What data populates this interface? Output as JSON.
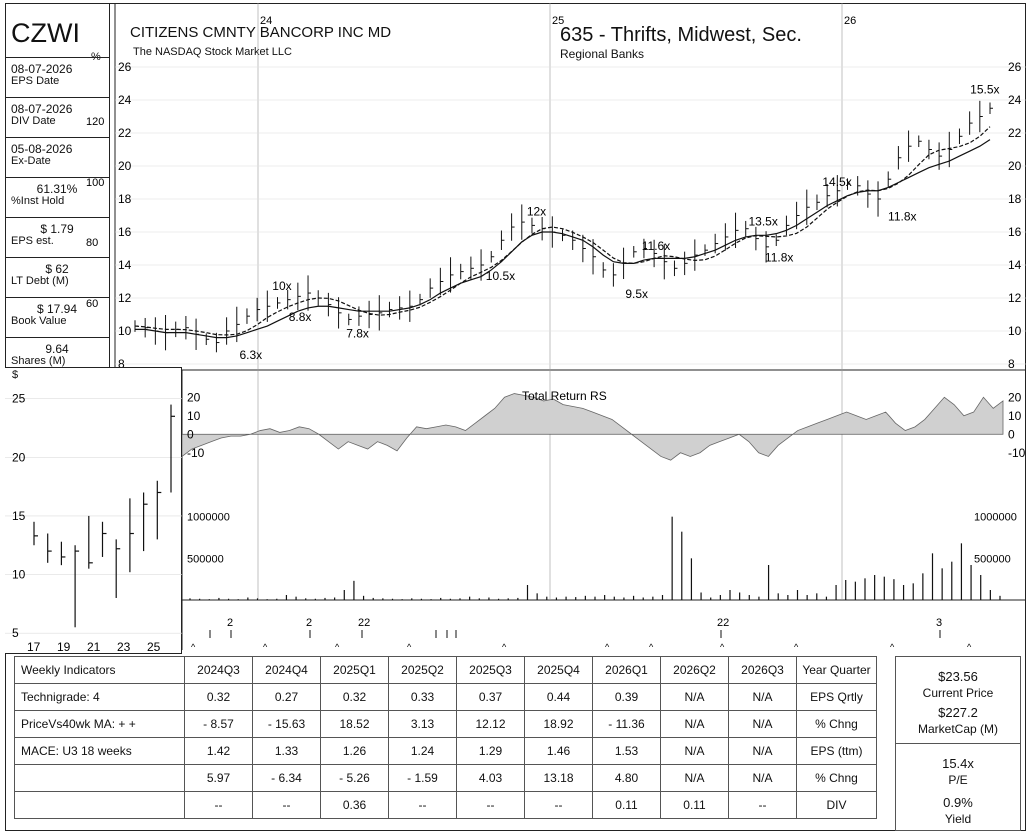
{
  "header": {
    "ticker": "CZWI",
    "company": "CITIZENS CMNTY BANCORP INC MD",
    "exchange": "The NASDAQ Stock Market LLC",
    "group": "635 - Thrifts, Midwest, Sec.",
    "industry": "Regional Banks",
    "percent_symbol": "%",
    "dollar_symbol": "$"
  },
  "sidebar": [
    {
      "value": "08-07-2026",
      "label": "EPS Date"
    },
    {
      "value": "08-07-2026",
      "label": "DIV Date"
    },
    {
      "value": "05-08-2026",
      "label": "Ex-Date"
    },
    {
      "value": "61.31%",
      "label": "%Inst Hold"
    },
    {
      "value": "$ 1.79",
      "label": "EPS est."
    },
    {
      "value": "$ 62",
      "label": "LT Debt (M)"
    },
    {
      "value": "$ 17.94",
      "label": "Book Value"
    },
    {
      "value": "9.64",
      "label": "Shares (M)"
    }
  ],
  "right_panel": {
    "price": "$23.56",
    "price_label": "Current Price",
    "mcap": "$227.2",
    "mcap_label": "MarketCap (M)",
    "pe": "15.4x",
    "pe_label": "P/E",
    "yield": "0.9%",
    "yield_label": "Yield"
  },
  "table": {
    "header": [
      "Weekly Indicators",
      "2024Q3",
      "2024Q4",
      "2025Q1",
      "2025Q2",
      "2025Q3",
      "2025Q4",
      "2026Q1",
      "2026Q2",
      "2026Q3",
      "Year Quarter"
    ],
    "rows": [
      [
        "Technigrade: 4",
        "0.32",
        "0.27",
        "0.32",
        "0.33",
        "0.37",
        "0.44",
        "0.39",
        "N/A",
        "N/A",
        "EPS Qrtly"
      ],
      [
        "PriceVs40wk MA:  + +",
        "- 8.57",
        "- 15.63",
        "18.52",
        "3.13",
        "12.12",
        "18.92",
        "- 11.36",
        "N/A",
        "N/A",
        "% Chng"
      ],
      [
        "MACE: U3   18 weeks",
        "1.42",
        "1.33",
        "1.26",
        "1.24",
        "1.29",
        "1.46",
        "1.53",
        "N/A",
        "N/A",
        "EPS (ttm)"
      ],
      [
        "",
        "5.97",
        "- 6.34",
        "- 5.26",
        "- 1.59",
        "4.03",
        "13.18",
        "4.80",
        "N/A",
        "N/A",
        "% Chng"
      ],
      [
        "",
        "--",
        "--",
        "0.36",
        "--",
        "--",
        "--",
        "0.11",
        "0.11",
        "--",
        "DIV"
      ]
    ]
  },
  "chart_data": [
    {
      "type": "line",
      "name": "weekly price bars",
      "x_labels": [
        "24",
        "25",
        "26"
      ],
      "y_ticks_left": [
        26,
        24,
        22,
        20,
        18,
        16,
        14,
        12,
        10,
        8
      ],
      "y_ticks_right": [
        26,
        24,
        22,
        20,
        18,
        16,
        14,
        12,
        10,
        8
      ],
      "pct_ticks": [
        120,
        100,
        80,
        60
      ],
      "ylim": [
        8,
        26
      ],
      "pe_annotations": [
        {
          "label": "6.3x",
          "x": 0.07,
          "y": 8.3
        },
        {
          "label": "10x",
          "x": 0.11,
          "y": 12.5
        },
        {
          "label": "8.8x",
          "x": 0.13,
          "y": 10.6
        },
        {
          "label": "7.8x",
          "x": 0.2,
          "y": 9.6
        },
        {
          "label": "10.5x",
          "x": 0.37,
          "y": 13.1
        },
        {
          "label": "12x",
          "x": 0.42,
          "y": 17.0
        },
        {
          "label": "11.6x",
          "x": 0.56,
          "y": 14.9
        },
        {
          "label": "9.5x",
          "x": 0.54,
          "y": 12.0
        },
        {
          "label": "13.5x",
          "x": 0.69,
          "y": 16.4
        },
        {
          "label": "11.8x",
          "x": 0.71,
          "y": 14.2
        },
        {
          "label": "14.5x",
          "x": 0.78,
          "y": 18.8
        },
        {
          "label": "11.8x",
          "x": 0.86,
          "y": 16.7
        },
        {
          "label": "15.5x",
          "x": 0.96,
          "y": 24.4
        }
      ],
      "series": [
        {
          "values": [
            10.3,
            10.2,
            10.0,
            9.9,
            10.1,
            10.2,
            9.8,
            9.5,
            9.3,
            10.0,
            10.4,
            10.9,
            11.3,
            11.5,
            11.7,
            11.9,
            12.1,
            12.3,
            12.0,
            11.6,
            11.1,
            10.7,
            10.9,
            11.0,
            11.1,
            11.3,
            11.4,
            11.5,
            11.9,
            12.6,
            13.0,
            13.4,
            13.6,
            13.8,
            14.0,
            14.5,
            15.5,
            16.3,
            16.6,
            16.4,
            16.2,
            16.0,
            15.8,
            15.5,
            15.0,
            14.5,
            13.7,
            13.4,
            14.1,
            14.8,
            15.0,
            14.7,
            14.2,
            13.8,
            14.1,
            14.6,
            14.9,
            15.3,
            15.7,
            16.1,
            16.2,
            15.6,
            15.1,
            15.5,
            16.4,
            17.0,
            17.5,
            17.8,
            18.2,
            18.5,
            18.9,
            18.8,
            18.3,
            18.0,
            19.2,
            20.5,
            21.2,
            21.5,
            21.0,
            20.6,
            21.0,
            21.8,
            22.6,
            23.0,
            23.5
          ]
        },
        {
          "values": [
            10.1,
            10.1,
            10.0,
            9.9,
            9.9,
            9.9,
            9.8,
            9.7,
            9.6,
            9.6,
            9.7,
            9.9,
            10.1,
            10.3,
            10.6,
            10.9,
            11.2,
            11.4,
            11.5,
            11.5,
            11.4,
            11.3,
            11.2,
            11.2,
            11.2,
            11.2,
            11.3,
            11.4,
            11.6,
            11.9,
            12.3,
            12.6,
            12.9,
            13.1,
            13.3,
            13.7,
            14.2,
            14.8,
            15.4,
            15.8,
            16.0,
            16.0,
            15.9,
            15.7,
            15.5,
            15.1,
            14.6,
            14.2,
            14.1,
            14.1,
            14.3,
            14.4,
            14.4,
            14.4,
            14.4,
            14.5,
            14.7,
            14.9,
            15.2,
            15.5,
            15.7,
            15.8,
            15.8,
            15.9,
            16.1,
            16.4,
            16.8,
            17.2,
            17.6,
            17.9,
            18.2,
            18.4,
            18.5,
            18.5,
            18.7,
            19.0,
            19.3,
            19.6,
            19.9,
            20.1,
            20.3,
            20.6,
            20.9,
            21.2,
            21.6
          ]
        }
      ]
    },
    {
      "type": "area",
      "title": "Total Return RS",
      "y_ticks": [
        20,
        10,
        0,
        -10
      ],
      "ylim": [
        -15,
        25
      ],
      "values": [
        -12,
        -8,
        -6,
        -4,
        -2,
        -1,
        -1,
        0,
        2,
        3,
        1,
        2,
        4,
        3,
        0,
        -4,
        -8,
        -4,
        -6,
        -8,
        -4,
        -6,
        -9,
        -2,
        4,
        3,
        4,
        5,
        4,
        2,
        6,
        10,
        14,
        20,
        22,
        21,
        20,
        18,
        19,
        16,
        15,
        14,
        12,
        10,
        8,
        4,
        0,
        -4,
        -8,
        -12,
        -14,
        -10,
        -12,
        -10,
        -6,
        -4,
        -2,
        0,
        -4,
        -10,
        -12,
        -6,
        -2,
        2,
        4,
        6,
        8,
        10,
        12,
        10,
        8,
        10,
        12,
        6,
        2,
        4,
        8,
        14,
        20,
        16,
        10,
        12,
        20,
        14,
        18
      ]
    },
    {
      "type": "bar",
      "title": "Volume",
      "y_ticks": [
        1000000,
        500000
      ],
      "tick_labels": [
        "1000000",
        "500000"
      ],
      "ylim": [
        0,
        1200000
      ],
      "values": [
        20000,
        15000,
        10000,
        25000,
        15000,
        10000,
        30000,
        20000,
        10000,
        15000,
        60000,
        40000,
        20000,
        15000,
        25000,
        30000,
        120000,
        230000,
        50000,
        25000,
        20000,
        15000,
        10000,
        20000,
        15000,
        10000,
        25000,
        15000,
        20000,
        40000,
        20000,
        30000,
        15000,
        20000,
        25000,
        180000,
        80000,
        40000,
        30000,
        40000,
        35000,
        50000,
        40000,
        60000,
        40000,
        30000,
        50000,
        30000,
        40000,
        60000,
        1000000,
        820000,
        500000,
        90000,
        30000,
        60000,
        120000,
        90000,
        60000,
        40000,
        420000,
        80000,
        60000,
        120000,
        60000,
        80000,
        40000,
        180000,
        240000,
        220000,
        260000,
        300000,
        280000,
        250000,
        180000,
        200000,
        320000,
        560000,
        380000,
        460000,
        680000,
        420000,
        300000,
        120000,
        50000
      ]
    },
    {
      "type": "table",
      "title": "monthly inset",
      "x_ticks": [
        "17",
        "19",
        "21",
        "23",
        "25"
      ],
      "y_ticks": [
        25,
        20,
        15,
        10,
        5
      ],
      "ylim": [
        4.5,
        26
      ],
      "ohlc": [
        [
          14.5,
          12.5,
          13.3
        ],
        [
          13.5,
          11.0,
          12.0
        ],
        [
          12.8,
          10.8,
          11.5
        ],
        [
          12.5,
          5.5,
          12.0
        ],
        [
          15.0,
          10.5,
          11.0
        ],
        [
          14.5,
          11.5,
          13.5
        ],
        [
          13.0,
          8.0,
          12.2
        ],
        [
          16.5,
          10.2,
          13.5
        ],
        [
          17.0,
          12.0,
          16.0
        ],
        [
          18.0,
          13.0,
          17.0
        ],
        [
          24.5,
          17.0,
          23.5
        ]
      ]
    }
  ]
}
